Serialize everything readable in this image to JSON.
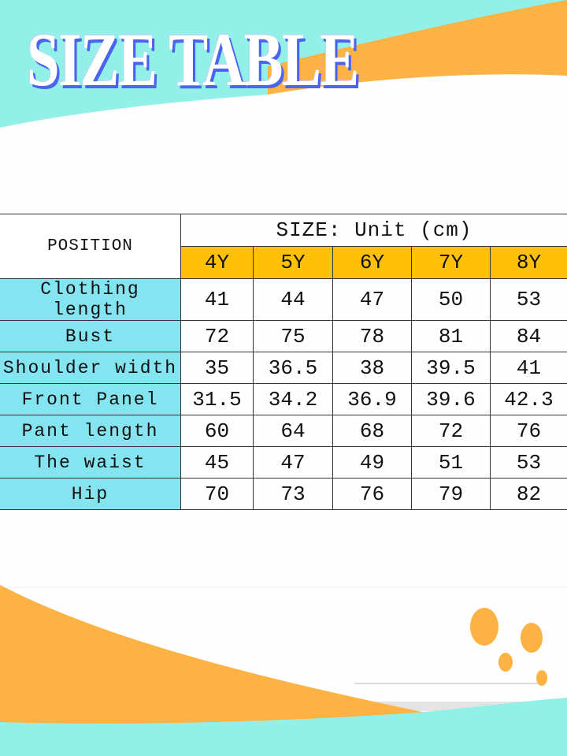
{
  "title": "SIZE TABLE",
  "colors": {
    "teal": "#92f0e8",
    "orange": "#fcb344",
    "size_header": "#ffc107",
    "label_cells": "#84e4ef",
    "title_shadow": "#4a63f0"
  },
  "table": {
    "position_header": "POSITION",
    "size_header": "SIZE: Unit (cm)",
    "sizes": [
      "4Y",
      "5Y",
      "6Y",
      "7Y",
      "8Y"
    ],
    "rows": [
      {
        "label": "Clothing length",
        "values": [
          "41",
          "44",
          "47",
          "50",
          "53"
        ]
      },
      {
        "label": "Bust",
        "values": [
          "72",
          "75",
          "78",
          "81",
          "84"
        ]
      },
      {
        "label": "Shoulder width",
        "values": [
          "35",
          "36.5",
          "38",
          "39.5",
          "41"
        ]
      },
      {
        "label": "Front Panel",
        "values": [
          "31.5",
          "34.2",
          "36.9",
          "39.6",
          "42.3"
        ]
      },
      {
        "label": "Pant length",
        "values": [
          "60",
          "64",
          "68",
          "72",
          "76"
        ]
      },
      {
        "label": "The waist",
        "values": [
          "45",
          "47",
          "49",
          "51",
          "53"
        ]
      },
      {
        "label": "Hip",
        "values": [
          "70",
          "73",
          "76",
          "79",
          "82"
        ]
      }
    ]
  }
}
